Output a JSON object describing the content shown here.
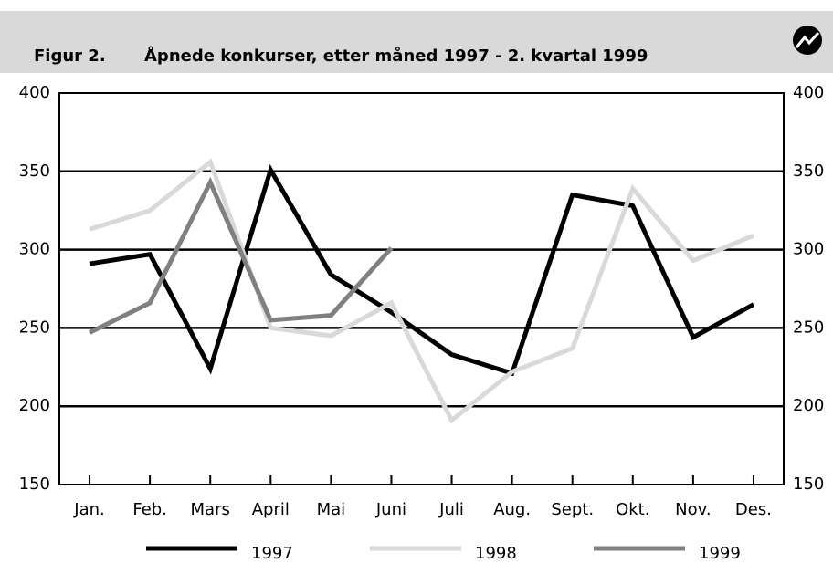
{
  "chart_data": {
    "type": "line",
    "figure_label": "Figur 2.",
    "title": "Åpnede konkurser, etter måned 1997 - 2. kvartal 1999",
    "categories": [
      "Jan.",
      "Feb.",
      "Mars",
      "April",
      "Mai",
      "Juni",
      "Juli",
      "Aug.",
      "Sept.",
      "Okt.",
      "Nov.",
      "Des."
    ],
    "series": [
      {
        "name": "1997",
        "color": "#000000",
        "values": [
          291,
          297,
          224,
          351,
          284,
          260,
          233,
          221,
          335,
          328,
          244,
          265
        ]
      },
      {
        "name": "1998",
        "color": "#d9d9d9",
        "values": [
          313,
          325,
          356,
          250,
          245,
          266,
          191,
          222,
          237,
          339,
          293,
          309
        ]
      },
      {
        "name": "1999",
        "color": "#808080",
        "values": [
          247,
          266,
          343,
          255,
          258,
          301,
          null,
          null,
          null,
          null,
          null,
          null
        ]
      }
    ],
    "ylim": [
      150,
      400
    ],
    "yticks": [
      150,
      200,
      250,
      300,
      350,
      400
    ],
    "grid": true
  }
}
